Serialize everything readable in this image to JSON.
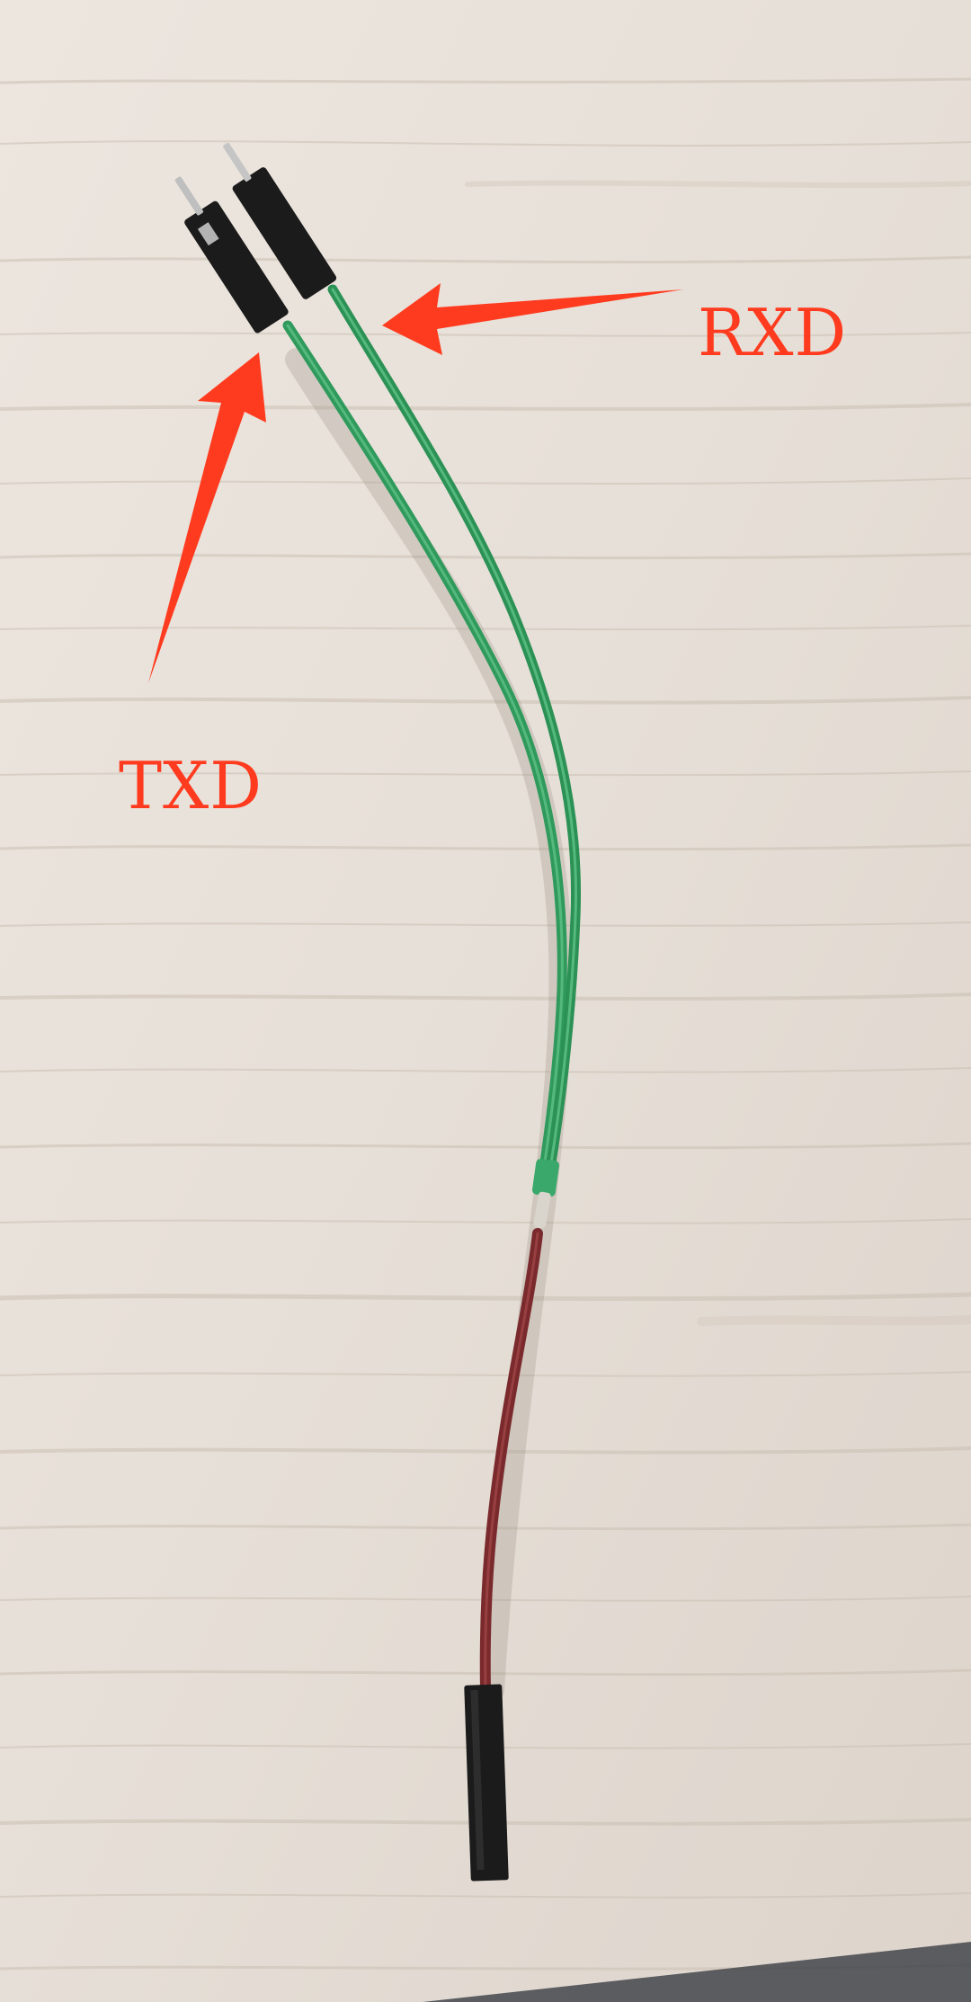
{
  "annotations": {
    "rxd_label": "RXD",
    "txd_label": "TXD"
  },
  "colors": {
    "annotation": "#ff3b1f",
    "wood_base": "#e9e3dc",
    "wood_grain": "#cbbfb3",
    "wire_green": "#2f9a5c",
    "wire_green_dark": "#1f7a45",
    "wire_red": "#7a2a2c",
    "connector_black": "#1b1b1b",
    "pin_metal": "#bfbfbf"
  },
  "objects": {
    "wire_colors": [
      "green",
      "green",
      "dark-red"
    ],
    "connector_count": 3
  }
}
